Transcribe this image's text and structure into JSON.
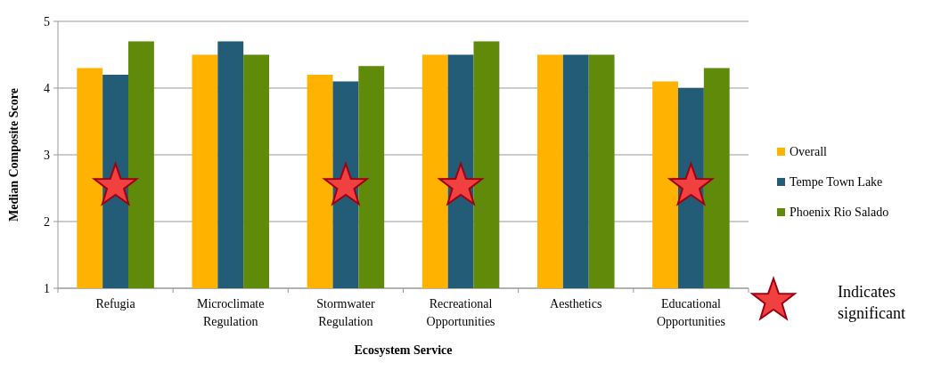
{
  "chart_data": {
    "type": "bar",
    "xlabel": "Ecosystem Service",
    "ylabel": "Median Composite Score",
    "categories": [
      "Refugia",
      "Microclimate Regulation",
      "Stormwater Regulation",
      "Recreational Opportunities",
      "Aesthetics",
      "Educational Opportunities"
    ],
    "series": [
      {
        "name": "Overall",
        "color": "#ffb300",
        "values": [
          4.3,
          4.5,
          4.2,
          4.5,
          4.5,
          4.1
        ]
      },
      {
        "name": "Tempe Town Lake",
        "color": "#225c77",
        "values": [
          4.2,
          4.7,
          4.1,
          4.5,
          4.5,
          4.0
        ]
      },
      {
        "name": "Phoenix Rio Salado",
        "color": "#5f8a0a",
        "values": [
          4.7,
          4.5,
          4.33,
          4.7,
          4.5,
          4.3
        ]
      }
    ],
    "ylim": [
      1,
      5
    ],
    "yticks": [
      1,
      2,
      3,
      4,
      5
    ],
    "grid": "y",
    "legend": "right",
    "annotations": [
      "Indicates significant"
    ]
  }
}
